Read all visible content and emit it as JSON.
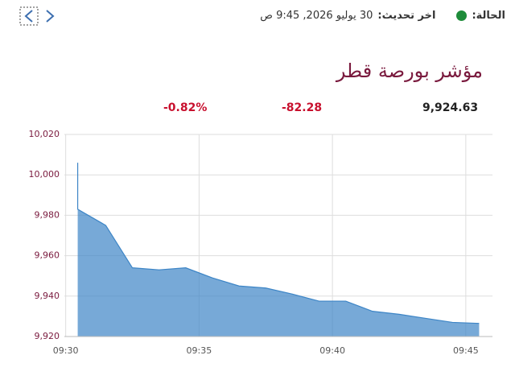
{
  "header": {
    "status_label": "الحالة:",
    "update_label": "اخر تحديث:",
    "update_value": "30 يوليو 2026, 9:45 ص"
  },
  "title": "مؤشر بورصة قطر",
  "stats": {
    "value": "9,924.63",
    "change": "-82.28",
    "change_percent": "-0.82%"
  },
  "chart_data": {
    "type": "area",
    "x": [
      570.45,
      570.45,
      571.5,
      572.5,
      573.5,
      574.5,
      575.5,
      576.5,
      577.5,
      578.5,
      579.5,
      580.5,
      581.5,
      582.5,
      583.5,
      584.5,
      585.5
    ],
    "values": [
      10006,
      9983,
      9975,
      9954,
      9953,
      9954,
      9949,
      9945,
      9944,
      9941,
      9937.5,
      9937.5,
      9932.5,
      9931,
      9929,
      9927,
      9926.5
    ],
    "color": "#3d85c6",
    "xlim": [
      569.95,
      586
    ],
    "xticks": [
      {
        "value": 570,
        "label": "09:30"
      },
      {
        "value": 575,
        "label": "09:35"
      },
      {
        "value": 580,
        "label": "09:40"
      },
      {
        "value": 585,
        "label": "09:45"
      }
    ],
    "ylim": [
      9920,
      10020
    ],
    "yticks": [
      {
        "value": 9920,
        "label": "9,920"
      },
      {
        "value": 9940,
        "label": "9,940"
      },
      {
        "value": 9960,
        "label": "9,960"
      },
      {
        "value": 9980,
        "label": "9,980"
      },
      {
        "value": 10000,
        "label": "10,000"
      },
      {
        "value": 10020,
        "label": "10,020"
      }
    ],
    "grid": true
  }
}
